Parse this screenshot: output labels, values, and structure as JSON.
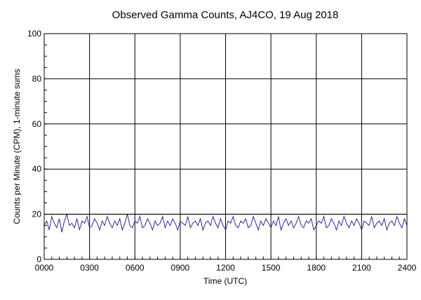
{
  "chart_data": {
    "type": "line",
    "title": "Observed Gamma Counts, AJ4CO, 19 Aug 2018",
    "xlabel": "Time (UTC)",
    "ylabel": "Counts per Minute (CPM), 1-minute sums",
    "xlim": [
      0,
      1440
    ],
    "ylim": [
      0,
      100
    ],
    "x_ticks": [
      {
        "value": 0,
        "label": "0000"
      },
      {
        "value": 180,
        "label": "0300"
      },
      {
        "value": 360,
        "label": "0600"
      },
      {
        "value": 540,
        "label": "0900"
      },
      {
        "value": 720,
        "label": "1200"
      },
      {
        "value": 900,
        "label": "1500"
      },
      {
        "value": 1080,
        "label": "1800"
      },
      {
        "value": 1260,
        "label": "2100"
      },
      {
        "value": 1440,
        "label": "2400"
      }
    ],
    "y_ticks": [
      {
        "value": 0,
        "label": "0"
      },
      {
        "value": 20,
        "label": "20"
      },
      {
        "value": 40,
        "label": "40"
      },
      {
        "value": 60,
        "label": "60"
      },
      {
        "value": 80,
        "label": "80"
      },
      {
        "value": 100,
        "label": "100"
      }
    ],
    "grid": true,
    "reference_line": {
      "y": 20,
      "color": "#000000"
    },
    "series": [
      {
        "color": "#2b2b9a",
        "x_unit": "minutes since 0000 UTC",
        "x_start": 0,
        "x_step": 10,
        "values": [
          15,
          17,
          13,
          19,
          16,
          14,
          18,
          12,
          17,
          20,
          15,
          16,
          14,
          18,
          13,
          17,
          16,
          19,
          14,
          15,
          18,
          16,
          13,
          17,
          15,
          19,
          16,
          14,
          17,
          15,
          18,
          13,
          16,
          20,
          15,
          14,
          17,
          16,
          19,
          14,
          15,
          18,
          16,
          13,
          17,
          15,
          16,
          19,
          14,
          17,
          15,
          18,
          16,
          13,
          17,
          16,
          15,
          19,
          14,
          16,
          17,
          15,
          18,
          13,
          16,
          17,
          15,
          19,
          16,
          14,
          18,
          15,
          13,
          17,
          16,
          19,
          15,
          14,
          17,
          16,
          18,
          14,
          15,
          19,
          16,
          13,
          17,
          15,
          18,
          16,
          14,
          17,
          15,
          19,
          13,
          16,
          18,
          15,
          17,
          14,
          16,
          19,
          15,
          14,
          17,
          16,
          18,
          13,
          15,
          17,
          16,
          19,
          14,
          15,
          18,
          16,
          13,
          17,
          15,
          19,
          16,
          14,
          17,
          15,
          18,
          16,
          13,
          17,
          16,
          15,
          19,
          14,
          16,
          17,
          15,
          18,
          13,
          16,
          17,
          15,
          19,
          16,
          14,
          18,
          15
        ]
      }
    ]
  }
}
